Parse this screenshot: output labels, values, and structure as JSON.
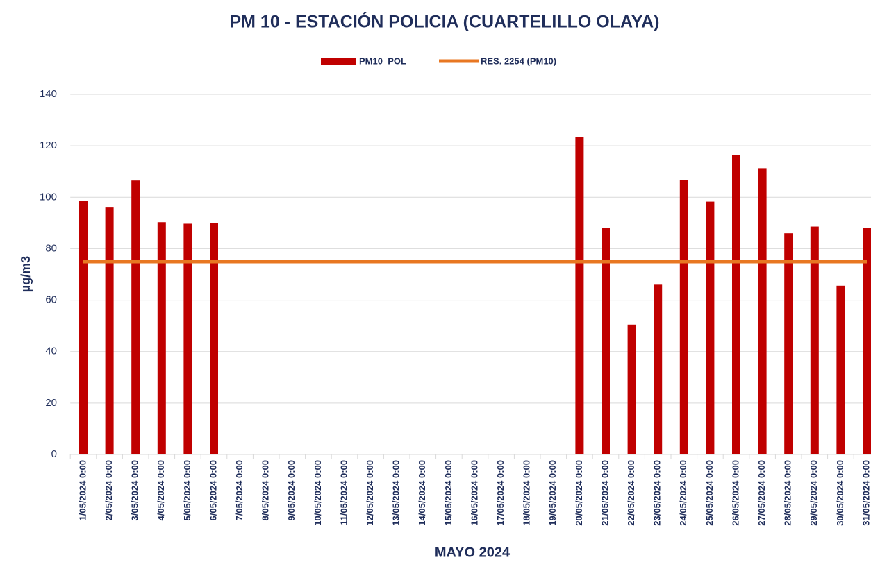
{
  "chart_data": {
    "type": "bar",
    "title": "PM 10 - ESTACIÓN POLICIA (CUARTELILLO OLAYA)",
    "x_label": "MAYO 2024",
    "y_label": "µg/m3",
    "categories": [
      "1/05/2024 0:00",
      "2/05/2024 0:00",
      "3/05/2024 0:00",
      "4/05/2024 0:00",
      "5/05/2024 0:00",
      "6/05/2024 0:00",
      "7/05/2024 0:00",
      "8/05/2024 0:00",
      "9/05/2024 0:00",
      "10/05/2024 0:00",
      "11/05/2024 0:00",
      "12/05/2024 0:00",
      "13/05/2024 0:00",
      "14/05/2024 0:00",
      "15/05/2024 0:00",
      "16/05/2024 0:00",
      "17/05/2024 0:00",
      "18/05/2024 0:00",
      "19/05/2024 0:00",
      "20/05/2024 0:00",
      "21/05/2024 0:00",
      "22/05/2024 0:00",
      "23/05/2024 0:00",
      "24/05/2024 0:00",
      "25/05/2024 0:00",
      "26/05/2024 0:00",
      "27/05/2024 0:00",
      "28/05/2024 0:00",
      "29/05/2024 0:00",
      "30/05/2024 0:00",
      "31/05/2024 0:00"
    ],
    "series": [
      {
        "name": "PM10_POL",
        "type": "bar",
        "color": "#c00000",
        "values": [
          98.5,
          96,
          106.5,
          90.3,
          89.7,
          90,
          null,
          null,
          null,
          null,
          null,
          null,
          null,
          null,
          null,
          null,
          null,
          null,
          null,
          123.3,
          88.2,
          50.5,
          66,
          106.7,
          98.3,
          116.3,
          111.3,
          86,
          88.6,
          65.6,
          88.2
        ]
      },
      {
        "name": "RES. 2254 (PM10)",
        "type": "line",
        "color": "#e87722",
        "values": [
          75,
          75,
          75,
          75,
          75,
          75,
          75,
          75,
          75,
          75,
          75,
          75,
          75,
          75,
          75,
          75,
          75,
          75,
          75,
          75,
          75,
          75,
          75,
          75,
          75,
          75,
          75,
          75,
          75,
          75,
          75
        ]
      }
    ],
    "ylim": [
      0,
      140
    ],
    "yticks": [
      0,
      20,
      40,
      60,
      80,
      100,
      120,
      140
    ],
    "grid": true,
    "legend": "top"
  }
}
